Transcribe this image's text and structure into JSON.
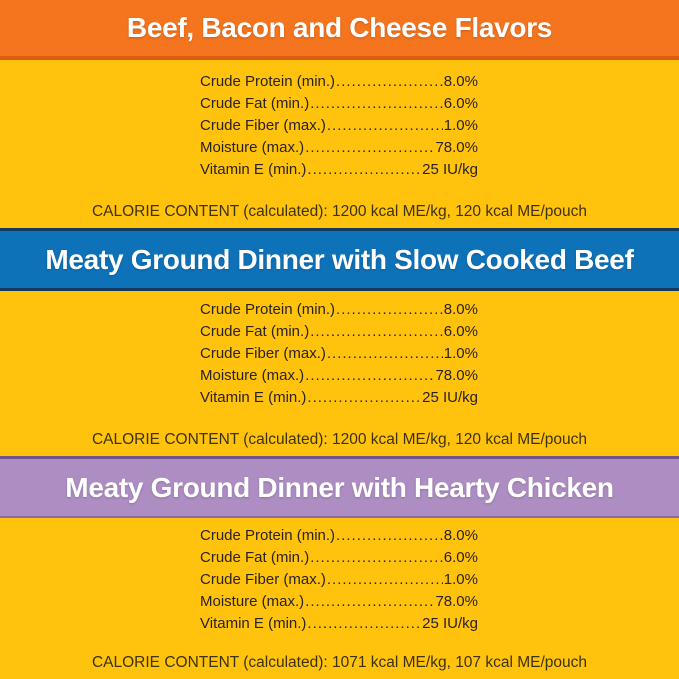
{
  "colors": {
    "background_yellow": "#FFC20D",
    "band1_orange": "#F5741E",
    "band1_edge": "#DA5E12",
    "band2_blue": "#0E72B9",
    "band2_edge": "#16395F",
    "band3_purple": "#AD8DC2",
    "band3_edge": "#6F528B",
    "band_title_text": "#FFFFFF",
    "analysis_text": "#2A2320",
    "calorie_text": "#3D320C"
  },
  "sections": [
    {
      "title": "Beef, Bacon and Cheese Flavors",
      "rows": [
        {
          "label": "Crude Protein (min.)",
          "value": "8.0%"
        },
        {
          "label": "Crude Fat (min.)",
          "value": "6.0%"
        },
        {
          "label": "Crude Fiber (max.)",
          "value": "1.0%"
        },
        {
          "label": "Moisture (max.)",
          "value": "78.0%"
        },
        {
          "label": "Vitamin E (min.)",
          "value": "25 IU/kg"
        }
      ],
      "calorie_line": "CALORIE CONTENT (calculated): 1200 kcal ME/kg, 120 kcal ME/pouch"
    },
    {
      "title": "Meaty Ground Dinner with Slow Cooked Beef",
      "rows": [
        {
          "label": "Crude Protein (min.)",
          "value": "8.0%"
        },
        {
          "label": "Crude Fat (min.)",
          "value": "6.0%"
        },
        {
          "label": "Crude Fiber (max.)",
          "value": "1.0%"
        },
        {
          "label": "Moisture (max.)",
          "value": "78.0%"
        },
        {
          "label": "Vitamin E (min.)",
          "value": "25 IU/kg"
        }
      ],
      "calorie_line": "CALORIE CONTENT (calculated): 1200 kcal ME/kg, 120 kcal ME/pouch"
    },
    {
      "title": "Meaty Ground Dinner with Hearty Chicken",
      "rows": [
        {
          "label": "Crude Protein (min.)",
          "value": "8.0%"
        },
        {
          "label": "Crude Fat (min.)",
          "value": "6.0%"
        },
        {
          "label": "Crude Fiber (max.)",
          "value": "1.0%"
        },
        {
          "label": "Moisture (max.)",
          "value": "78.0%"
        },
        {
          "label": "Vitamin E (min.)",
          "value": "25 IU/kg"
        }
      ],
      "calorie_line": "CALORIE CONTENT (calculated): 1071 kcal ME/kg, 107 kcal ME/pouch"
    }
  ]
}
